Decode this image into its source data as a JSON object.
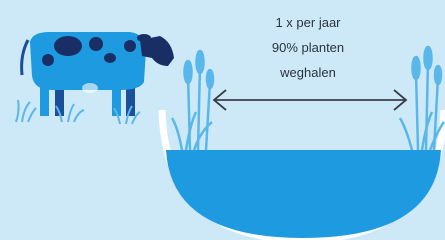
{
  "label": {
    "lines": [
      "1 x per jaar",
      "90% planten",
      "weghalen"
    ]
  }
}
